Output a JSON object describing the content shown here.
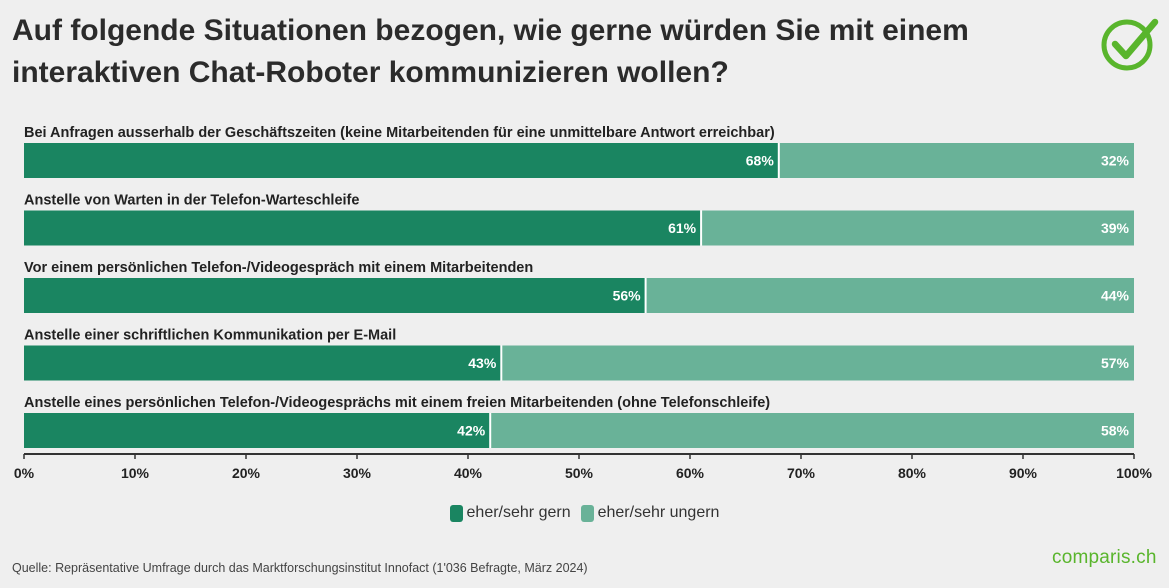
{
  "title": "Auf folgende Situationen bezogen, wie gerne würden Sie mit einem interaktiven Chat-Roboter kommunizieren wollen?",
  "source": "Quelle: Repräsentative Umfrage durch das Marktforschungsinstitut Innofact (1'036 Befragte, März 2024)",
  "logo_text": "comparis.ch",
  "colors": {
    "gern": "#1a8561",
    "ungern": "#69b298",
    "brand_green": "#59b52c"
  },
  "chart_data": {
    "type": "bar",
    "orientation": "horizontal",
    "stacked": true,
    "title": "Auf folgende Situationen bezogen, wie gerne würden Sie mit einem interaktiven Chat-Roboter kommunizieren wollen?",
    "categories": [
      "Bei Anfragen ausserhalb der Geschäftszeiten (keine Mitarbeitenden für eine unmittelbare Antwort erreichbar)",
      "Anstelle von Warten in der Telefon-Warteschleife",
      "Vor einem persönlichen Telefon-/Videogespräch mit einem Mitarbeitenden",
      "Anstelle einer schriftlichen Kommunikation per E-Mail",
      "Anstelle eines persönlichen Telefon-/Videogesprächs mit einem freien Mitarbeitenden (ohne Telefonschleife)"
    ],
    "series": [
      {
        "name": "eher/sehr gern",
        "values": [
          68,
          61,
          56,
          43,
          42
        ],
        "labels": [
          "68%",
          "61%",
          "56%",
          "43%",
          "42%"
        ]
      },
      {
        "name": "eher/sehr ungern",
        "values": [
          32,
          39,
          44,
          57,
          58
        ],
        "labels": [
          "32%",
          "39%",
          "44%",
          "57%",
          "58%"
        ]
      }
    ],
    "xlim": [
      0,
      100
    ],
    "xticks": [
      "0%",
      "10%",
      "20%",
      "30%",
      "40%",
      "50%",
      "60%",
      "70%",
      "80%",
      "90%",
      "100%"
    ],
    "xlabel": "",
    "ylabel": "",
    "grid": false,
    "legend_position": "bottom-center"
  }
}
